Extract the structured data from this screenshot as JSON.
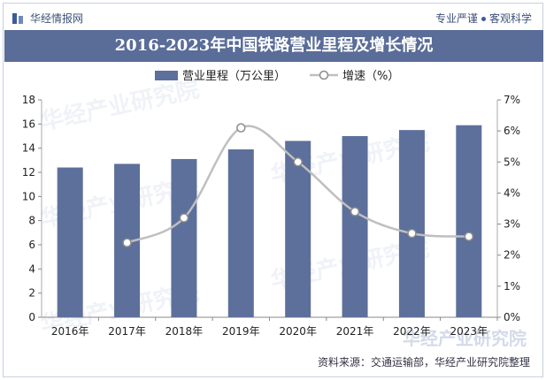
{
  "header": {
    "brand": "华经情报网",
    "slogan_left": "专业严谨",
    "slogan_right": "客观科学"
  },
  "watermark": "华经产业研究院",
  "footer": {
    "source": "资料来源：交通运输部，华经产业研究院整理"
  },
  "colors": {
    "bar": "#5d6f9b",
    "line": "#bfbfbf",
    "title_bg": "#5a6c98"
  },
  "chart_data": {
    "type": "bar",
    "title": "2016-2023年中国铁路营业里程及增长情况",
    "categories": [
      "2016年",
      "2017年",
      "2018年",
      "2019年",
      "2020年",
      "2021年",
      "2022年",
      "2023年"
    ],
    "series": [
      {
        "name": "营业里程（万公里）",
        "type": "bar",
        "axis": "left",
        "values": [
          12.4,
          12.7,
          13.1,
          13.9,
          14.6,
          15.0,
          15.5,
          15.9
        ]
      },
      {
        "name": "增速（%）",
        "type": "line",
        "axis": "right",
        "values": [
          null,
          2.4,
          3.2,
          6.1,
          5.0,
          3.4,
          2.7,
          2.6
        ]
      }
    ],
    "ylim_left": [
      0,
      18
    ],
    "yticks_left": [
      "0",
      "2",
      "4",
      "6",
      "8",
      "10",
      "12",
      "14",
      "16",
      "18"
    ],
    "ylim_right": [
      0,
      7
    ],
    "yticks_right": [
      "0%",
      "1%",
      "2%",
      "3%",
      "4%",
      "5%",
      "6%",
      "7%"
    ],
    "legend_position": "top-center",
    "grid": false
  }
}
